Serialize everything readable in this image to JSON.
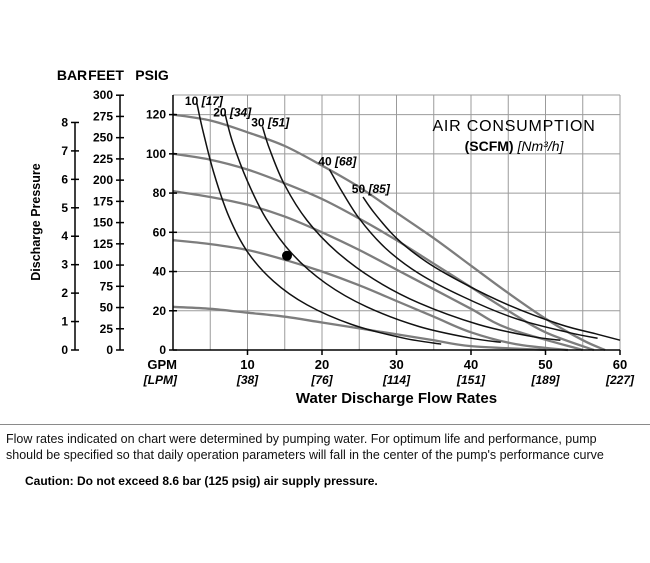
{
  "chart": {
    "y_axis_headers": [
      "BAR",
      "FEET",
      "PSIG"
    ],
    "y_axis_title": "Discharge Pressure",
    "x_axis_title": "Water Discharge Flow Rates",
    "x_unit_primary": "GPM",
    "x_unit_secondary": "[LPM]",
    "title": {
      "line1": "AIR CONSUMPTION",
      "line2_bold": "(SCFM)",
      "line2_italic": " [Nm³/h]"
    }
  },
  "chart_data": {
    "type": "line",
    "title": "AIR CONSUMPTION (SCFM) [Nm³/h]",
    "xlabel": "Water Discharge Flow Rates",
    "ylabel": "Discharge Pressure",
    "x_axis": {
      "unit": "GPM",
      "secondary_unit": "[LPM]",
      "range": [
        0,
        60
      ],
      "ticks": [
        10,
        20,
        30,
        40,
        50,
        60
      ],
      "secondary_labels": [
        "[38]",
        "[76]",
        "[114]",
        "[151]",
        "[189]",
        "[227]"
      ],
      "grid_step": 5
    },
    "y_axes": {
      "psig": {
        "range": [
          0,
          130
        ],
        "ticks": [
          0,
          20,
          40,
          60,
          80,
          100,
          120
        ]
      },
      "feet": {
        "range": [
          0,
          300
        ],
        "ticks": [
          0,
          25,
          50,
          75,
          100,
          125,
          150,
          175,
          200,
          225,
          250,
          275,
          300
        ],
        "psig_per_unit": 0.433
      },
      "bar": {
        "range": [
          0,
          8
        ],
        "ticks": [
          0,
          1,
          2,
          3,
          4,
          5,
          6,
          7,
          8
        ],
        "psig_per_unit": 14.5
      }
    },
    "performance_curves": [
      {
        "name": "performance-curve-1",
        "points": [
          [
            0,
            120
          ],
          [
            5,
            117
          ],
          [
            10,
            111
          ],
          [
            15,
            104
          ],
          [
            20,
            94
          ],
          [
            25,
            83
          ],
          [
            30,
            70
          ],
          [
            35,
            57
          ],
          [
            40,
            43
          ],
          [
            45,
            29
          ],
          [
            50,
            16
          ],
          [
            55,
            5
          ],
          [
            58,
            0
          ]
        ]
      },
      {
        "name": "performance-curve-2",
        "points": [
          [
            0,
            100
          ],
          [
            5,
            97
          ],
          [
            10,
            92
          ],
          [
            15,
            85
          ],
          [
            20,
            77
          ],
          [
            25,
            67
          ],
          [
            30,
            56
          ],
          [
            35,
            44
          ],
          [
            40,
            32
          ],
          [
            45,
            20
          ],
          [
            50,
            9
          ],
          [
            56.5,
            0
          ]
        ]
      },
      {
        "name": "performance-curve-3",
        "points": [
          [
            0,
            81
          ],
          [
            5,
            78
          ],
          [
            10,
            74
          ],
          [
            15,
            68
          ],
          [
            20,
            60
          ],
          [
            25,
            51
          ],
          [
            30,
            41
          ],
          [
            35,
            31
          ],
          [
            40,
            21
          ],
          [
            45,
            11
          ],
          [
            55,
            0
          ]
        ]
      },
      {
        "name": "performance-curve-4",
        "points": [
          [
            0,
            56
          ],
          [
            5,
            54
          ],
          [
            10,
            51
          ],
          [
            15,
            46
          ],
          [
            20,
            40
          ],
          [
            25,
            33
          ],
          [
            30,
            25
          ],
          [
            35,
            17
          ],
          [
            40,
            9
          ],
          [
            46,
            3
          ],
          [
            53,
            0
          ]
        ]
      },
      {
        "name": "performance-curve-5",
        "points": [
          [
            0,
            22
          ],
          [
            5,
            21
          ],
          [
            10,
            19
          ],
          [
            15,
            17
          ],
          [
            20,
            14
          ],
          [
            25,
            11
          ],
          [
            30,
            8
          ],
          [
            35,
            5
          ],
          [
            40,
            2
          ],
          [
            50,
            0
          ]
        ]
      }
    ],
    "air_consumption_curves": [
      {
        "scfm": "10",
        "nm3h": "[17]",
        "label_at": [
          1.6,
          125
        ],
        "points": [
          [
            3.2,
            126
          ],
          [
            4,
            112
          ],
          [
            5.5,
            90
          ],
          [
            7.5,
            68
          ],
          [
            10,
            50
          ],
          [
            13.5,
            35
          ],
          [
            18,
            23
          ],
          [
            24,
            13
          ],
          [
            31,
            6
          ],
          [
            36,
            3
          ]
        ]
      },
      {
        "scfm": "20",
        "nm3h": "[34]",
        "label_at": [
          5.4,
          119
        ],
        "points": [
          [
            7,
            120
          ],
          [
            8,
            106
          ],
          [
            10,
            86
          ],
          [
            12.5,
            67
          ],
          [
            16,
            49
          ],
          [
            20.5,
            34
          ],
          [
            26,
            22
          ],
          [
            33,
            12
          ],
          [
            40,
            6
          ],
          [
            44,
            4
          ]
        ]
      },
      {
        "scfm": "30",
        "nm3h": "[51]",
        "label_at": [
          10.5,
          114
        ],
        "points": [
          [
            12,
            114
          ],
          [
            13,
            102
          ],
          [
            15,
            84
          ],
          [
            18,
            66
          ],
          [
            22,
            50
          ],
          [
            27,
            36
          ],
          [
            33,
            24
          ],
          [
            41,
            13
          ],
          [
            48,
            7
          ],
          [
            52,
            5
          ]
        ]
      },
      {
        "scfm": "40",
        "nm3h": "[68]",
        "label_at": [
          19.5,
          94
        ],
        "points": [
          [
            21,
            92
          ],
          [
            22.5,
            82
          ],
          [
            25,
            67
          ],
          [
            28.5,
            52
          ],
          [
            33,
            39
          ],
          [
            39,
            27
          ],
          [
            46,
            16
          ],
          [
            53,
            9
          ],
          [
            57,
            6
          ]
        ]
      },
      {
        "scfm": "50",
        "nm3h": "[85]",
        "label_at": [
          24,
          80
        ],
        "points": [
          [
            25.5,
            78
          ],
          [
            27,
            70
          ],
          [
            30,
            57
          ],
          [
            34,
            45
          ],
          [
            39,
            34
          ],
          [
            45,
            23
          ],
          [
            52,
            13
          ],
          [
            57,
            8
          ],
          [
            60,
            5
          ]
        ]
      }
    ],
    "marker_point": {
      "gpm": 15.3,
      "psig": 48
    },
    "colors": {
      "performance_curve": "#7d7d7d",
      "air_curve": "#111111",
      "grid": "#9b9b9b",
      "axis": "#000000"
    }
  },
  "footer": {
    "note_line1": "Flow rates indicated on chart were determined by pumping water. For optimum life and performance, pump",
    "note_line2": "should be specified so that daily operation parameters will fall in the center of the pump's performance curve",
    "caution": "Caution: Do not exceed 8.6 bar (125 psig) air supply pressure."
  }
}
